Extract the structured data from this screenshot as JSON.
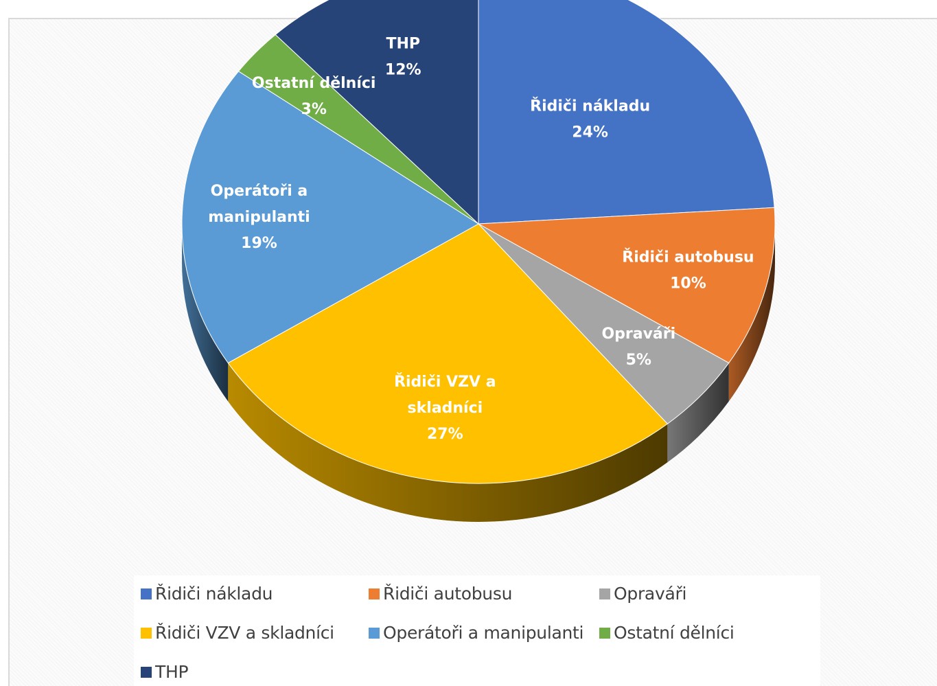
{
  "chart_data": {
    "type": "pie",
    "title": "",
    "style": "3d-tilted",
    "legend_position": "bottom",
    "slices": [
      {
        "key": "ridici-nakladu",
        "name": "Řidiči nákladu",
        "value": 24,
        "label_lines": [
          "Řidiči nákladu"
        ],
        "label_pct": "24%",
        "color": "#4472C4"
      },
      {
        "key": "ridici-autobusu",
        "name": "Řidiči autobusu",
        "value": 10,
        "label_lines": [
          "Řidiči autobusu"
        ],
        "label_pct": "10%",
        "color": "#ED7D31"
      },
      {
        "key": "opravari",
        "name": "Opraváři",
        "value": 5,
        "label_lines": [
          "Opraváři"
        ],
        "label_pct": "5%",
        "color": "#A5A5A5"
      },
      {
        "key": "ridici-vzv",
        "name": "Řidiči VZV a skladníci",
        "value": 27,
        "label_lines": [
          "Řidiči VZV a",
          "skladníci"
        ],
        "label_pct": "27%",
        "color": "#FFC000"
      },
      {
        "key": "operatori",
        "name": "Operátoři a manipulanti",
        "value": 19,
        "label_lines": [
          "Operátoři a",
          "manipulanti"
        ],
        "label_pct": "19%",
        "color": "#5B9BD5"
      },
      {
        "key": "ostatni",
        "name": "Ostatní dělníci",
        "value": 3,
        "label_lines": [
          "Ostatní dělníci"
        ],
        "label_pct": "3%",
        "color": "#70AD47"
      },
      {
        "key": "thp",
        "name": "THP",
        "value": 12,
        "label_lines": [
          "THP"
        ],
        "label_pct": "12%",
        "color": "#264478"
      }
    ]
  }
}
